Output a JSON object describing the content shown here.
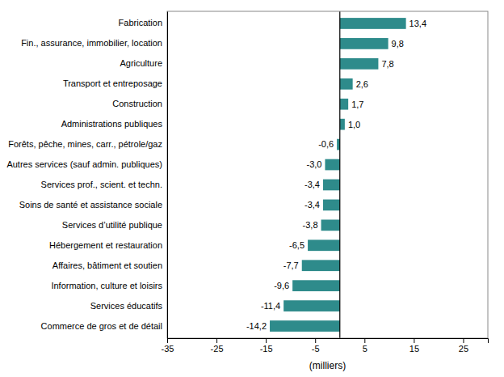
{
  "chart_data": {
    "type": "bar",
    "orientation": "horizontal",
    "categories": [
      "Commerce de gros et de détail",
      "Services éducatifs",
      "Information, culture et loisirs",
      "Affaires, bâtiment et soutien",
      "Hébergement et restauration",
      "Services d’utilité publique",
      "Soins de santé et assistance sociale",
      "Services prof., scient. et techn.",
      "Autres services (sauf admin. publiques)",
      "Forêts, pêche, mines, carr., pétrole/gaz",
      "Administrations publiques",
      "Construction",
      "Transport et entreposage",
      "Agriculture",
      "Fin., assurance, immobilier, location",
      "Fabrication"
    ],
    "values": [
      -14.2,
      -11.4,
      -9.6,
      -7.7,
      -6.5,
      -3.8,
      -3.4,
      -3.4,
      -3.0,
      -0.6,
      1.0,
      1.7,
      2.6,
      7.8,
      9.8,
      13.4
    ],
    "value_labels": [
      "-14,2",
      "-11,4",
      "-9,6",
      "-7,7",
      "-6,5",
      "-3,8",
      "-3,4",
      "-3,4",
      "-3,0",
      "-0,6",
      "1,0",
      "1,7",
      "2,6",
      "7,8",
      "9,8",
      "13,4"
    ],
    "data_labels": true,
    "color": "#2e8b8b",
    "xlabel": "(milliers)",
    "xlim": [
      -35,
      30
    ],
    "xticks": [
      -35,
      -25,
      -15,
      -5,
      5,
      15,
      25
    ],
    "grid": false
  }
}
